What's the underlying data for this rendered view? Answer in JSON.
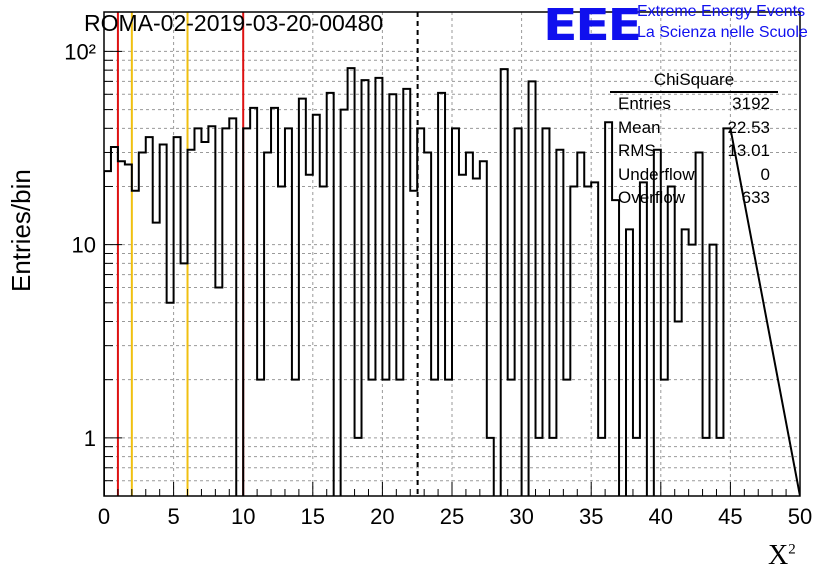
{
  "title": "ROMA-02-2019-03-20-00480",
  "logo": {
    "mark": "EEE",
    "line1": "Extreme Energy Events",
    "line2": "La Scienza nelle Scuole"
  },
  "colors": {
    "red_line": "#dd1111",
    "yellow_line": "#f0c010",
    "logo": "#1010ee"
  },
  "stats": {
    "title": "ChiSquare",
    "rows": [
      {
        "key": "Entries",
        "value": "3192"
      },
      {
        "key": "Mean",
        "value": "22.53"
      },
      {
        "key": "RMS",
        "value": "13.01"
      },
      {
        "key": "Underflow",
        "value": "0"
      },
      {
        "key": "Overflow",
        "value": "633"
      }
    ]
  },
  "chart_data": {
    "type": "bar",
    "title": "ROMA-02-2019-03-20-00480",
    "xlabel": "X",
    "xlabel_sup": "2",
    "ylabel": "Entries/bin",
    "xlim": [
      0,
      50
    ],
    "ylim": [
      0.5,
      160
    ],
    "y_scale": "log",
    "grid": true,
    "x_ticks": [
      "0",
      "5",
      "10",
      "15",
      "20",
      "25",
      "30",
      "35",
      "40",
      "45",
      "50"
    ],
    "y_ticks": [
      "1",
      "10",
      "10²"
    ],
    "bin_width": 0.5,
    "values": [
      24,
      32,
      27,
      26,
      19,
      30,
      36,
      13,
      33,
      5,
      36,
      8,
      31,
      40,
      34,
      41,
      6,
      40,
      45,
      0,
      40,
      51,
      2,
      30,
      51,
      20,
      40,
      2,
      57,
      23,
      47,
      20,
      61,
      0,
      50,
      82,
      1,
      71,
      2,
      73,
      2,
      60,
      2,
      64,
      19,
      40,
      30,
      2,
      61,
      2,
      40,
      23,
      30,
      22,
      27,
      1,
      0,
      81,
      2,
      40,
      0,
      70,
      1,
      40,
      1,
      31,
      2,
      20,
      30,
      20,
      21,
      1,
      43,
      17,
      0,
      12,
      1,
      21,
      0,
      31,
      2,
      20,
      4,
      12,
      10,
      30,
      1,
      10,
      1,
      40
    ],
    "vertical_lines": [
      {
        "x": 1,
        "color": "red",
        "style": "solid"
      },
      {
        "x": 2,
        "color": "yellow",
        "style": "solid"
      },
      {
        "x": 6,
        "color": "yellow",
        "style": "solid"
      },
      {
        "x": 10,
        "color": "red",
        "style": "solid"
      },
      {
        "x": 22.53,
        "color": "black",
        "style": "dashed"
      }
    ]
  }
}
